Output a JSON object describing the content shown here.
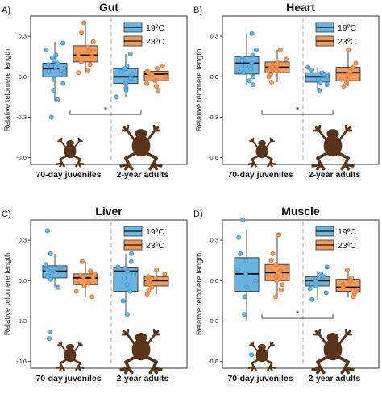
{
  "figure": {
    "ylabel": "Relative telomere length",
    "yticks": [
      "0.3",
      "0.0",
      "-0.3",
      "-0.6"
    ],
    "groups": [
      "70-day juveniles",
      "2-year adults"
    ],
    "legend": [
      "19ºC",
      "23ºC"
    ],
    "colors": {
      "c19": "#6ab4e2",
      "c19_dark": "#3f8fc4",
      "c23": "#f29a5b",
      "c23_dark": "#d57330",
      "frog": "#5a3419"
    },
    "significance_mark": "*"
  },
  "chart_data": [
    {
      "type": "box",
      "letter": "A)",
      "title": "Gut",
      "ylabel": "Relative telomere length",
      "ylim": [
        -0.65,
        0.45
      ],
      "yticks": [
        0.3,
        0.0,
        -0.3,
        -0.6
      ],
      "categories": [
        "70-day juveniles",
        "2-year adults"
      ],
      "significance": {
        "mark": "*",
        "between": [
          "70-day juveniles",
          "2-year adults"
        ]
      },
      "series": [
        {
          "name": "19ºC",
          "boxes": [
            {
              "group": "70-day juveniles",
              "min": -0.18,
              "q1": 0.0,
              "median": 0.06,
              "q3": 0.1,
              "max": 0.26,
              "points": [
                0.25,
                0.2,
                0.16,
                0.14,
                0.12,
                0.1,
                0.09,
                0.08,
                0.07,
                0.06,
                0.05,
                0.04,
                0.03,
                0.02,
                -0.02,
                -0.05,
                -0.1,
                -0.17,
                -0.3
              ]
            },
            {
              "group": "2-year adults",
              "min": -0.15,
              "q1": -0.05,
              "median": 0.0,
              "q3": 0.06,
              "max": 0.17,
              "points": [
                0.17,
                0.08,
                0.06,
                0.04,
                0.02,
                -0.01,
                -0.05,
                -0.08,
                -0.1,
                -0.15
              ]
            }
          ]
        },
        {
          "name": "23ºC",
          "boxes": [
            {
              "group": "70-day juveniles",
              "min": 0.03,
              "q1": 0.11,
              "median": 0.16,
              "q3": 0.23,
              "max": 0.4,
              "points": [
                0.4,
                0.33,
                0.26,
                0.22,
                0.2,
                0.19,
                0.17,
                0.15,
                0.13,
                0.11,
                0.09,
                0.05,
                0.03
              ]
            },
            {
              "group": "2-year adults",
              "min": -0.11,
              "q1": -0.03,
              "median": 0.02,
              "q3": 0.04,
              "max": 0.08,
              "points": [
                0.08,
                0.06,
                0.04,
                0.03,
                0.02,
                0.0,
                -0.03,
                -0.05,
                -0.07,
                -0.1
              ]
            }
          ]
        }
      ]
    },
    {
      "type": "box",
      "letter": "B)",
      "title": "Heart",
      "ylabel": "Relative telomere length",
      "ylim": [
        -0.65,
        0.45
      ],
      "yticks": [
        0.3,
        0.0,
        -0.3,
        -0.6
      ],
      "categories": [
        "70-day juveniles",
        "2-year adults"
      ],
      "significance": {
        "mark": "*",
        "between": [
          "70-day juveniles",
          "2-year adults"
        ]
      },
      "series": [
        {
          "name": "19ºC",
          "boxes": [
            {
              "group": "70-day juveniles",
              "min": -0.06,
              "q1": 0.02,
              "median": 0.1,
              "q3": 0.15,
              "max": 0.32,
              "points": [
                0.32,
                0.2,
                0.16,
                0.14,
                0.12,
                0.1,
                0.08,
                0.06,
                0.05,
                0.03,
                0.0,
                -0.03,
                -0.06
              ]
            },
            {
              "group": "2-year adults",
              "min": -0.1,
              "q1": -0.04,
              "median": 0.0,
              "q3": 0.03,
              "max": 0.07,
              "points": [
                0.07,
                0.05,
                0.03,
                0.02,
                0.0,
                -0.02,
                -0.04,
                -0.06,
                -0.1
              ]
            }
          ]
        },
        {
          "name": "23ºC",
          "boxes": [
            {
              "group": "70-day juveniles",
              "min": -0.04,
              "q1": 0.03,
              "median": 0.07,
              "q3": 0.11,
              "max": 0.2,
              "points": [
                0.2,
                0.13,
                0.11,
                0.09,
                0.08,
                0.07,
                0.06,
                0.05,
                0.04,
                0.02,
                0.0,
                -0.04
              ]
            },
            {
              "group": "2-year adults",
              "min": -0.07,
              "q1": -0.03,
              "median": 0.03,
              "q3": 0.07,
              "max": 0.2,
              "points": [
                0.2,
                0.1,
                0.07,
                0.04,
                0.02,
                0.0,
                -0.02,
                -0.04,
                -0.07
              ]
            }
          ]
        }
      ]
    },
    {
      "type": "box",
      "letter": "C)",
      "title": "Liver",
      "ylabel": "Relative telomere length",
      "ylim": [
        -0.65,
        0.45
      ],
      "yticks": [
        0.3,
        0.0,
        -0.3,
        -0.6
      ],
      "categories": [
        "70-day juveniles",
        "2-year adults"
      ],
      "significance": null,
      "series": [
        {
          "name": "19ºC",
          "boxes": [
            {
              "group": "70-day juveniles",
              "min": -0.05,
              "q1": 0.02,
              "median": 0.07,
              "q3": 0.11,
              "max": 0.2,
              "points": [
                0.37,
                0.2,
                0.12,
                0.1,
                0.09,
                0.08,
                0.07,
                0.06,
                0.05,
                0.03,
                0.01,
                -0.05,
                -0.38,
                -0.43
              ]
            },
            {
              "group": "2-year adults",
              "min": -0.25,
              "q1": -0.08,
              "median": 0.07,
              "q3": 0.1,
              "max": 0.2,
              "points": [
                0.2,
                0.14,
                0.1,
                0.09,
                0.07,
                0.05,
                0.02,
                -0.03,
                -0.08,
                -0.15,
                -0.25
              ]
            }
          ]
        },
        {
          "name": "23ºC",
          "boxes": [
            {
              "group": "70-day juveniles",
              "min": -0.12,
              "q1": -0.03,
              "median": 0.02,
              "q3": 0.05,
              "max": 0.14,
              "points": [
                0.14,
                0.07,
                0.05,
                0.04,
                0.03,
                0.02,
                0.0,
                -0.02,
                -0.04,
                -0.08,
                -0.12
              ]
            },
            {
              "group": "2-year adults",
              "min": -0.1,
              "q1": -0.04,
              "median": 0.0,
              "q3": 0.03,
              "max": 0.08,
              "points": [
                0.08,
                0.05,
                0.03,
                0.02,
                0.0,
                -0.01,
                -0.03,
                -0.05,
                -0.07,
                -0.1
              ]
            }
          ]
        }
      ]
    },
    {
      "type": "box",
      "letter": "D)",
      "title": "Muscle",
      "ylabel": "Relative telomere length",
      "ylim": [
        -0.65,
        0.45
      ],
      "yticks": [
        0.3,
        0.0,
        -0.3,
        -0.6
      ],
      "categories": [
        "70-day juveniles",
        "2-year adults"
      ],
      "significance": {
        "mark": "*",
        "between": [
          "70-day juveniles",
          "2-year adults"
        ]
      },
      "series": [
        {
          "name": "19ºC",
          "boxes": [
            {
              "group": "70-day juveniles",
              "min": -0.3,
              "q1": -0.08,
              "median": 0.05,
              "q3": 0.17,
              "max": 0.38,
              "points": [
                0.45,
                0.32,
                0.2,
                0.15,
                0.08,
                0.05,
                0.0,
                -0.05,
                -0.12,
                -0.25,
                -0.55
              ]
            },
            {
              "group": "2-year adults",
              "min": -0.14,
              "q1": -0.04,
              "median": 0.0,
              "q3": 0.03,
              "max": 0.07,
              "points": [
                0.1,
                0.05,
                0.03,
                0.02,
                0.0,
                -0.02,
                -0.04,
                -0.06,
                -0.09,
                -0.14
              ]
            }
          ]
        },
        {
          "name": "23ºC",
          "boxes": [
            {
              "group": "70-day juveniles",
              "min": -0.12,
              "q1": 0.0,
              "median": 0.06,
              "q3": 0.12,
              "max": 0.34,
              "points": [
                0.34,
                0.2,
                0.15,
                0.12,
                0.1,
                0.07,
                0.05,
                0.03,
                0.0,
                -0.03,
                -0.07,
                -0.12
              ]
            },
            {
              "group": "2-year adults",
              "min": -0.12,
              "q1": -0.08,
              "median": -0.05,
              "q3": 0.01,
              "max": 0.08,
              "points": [
                0.08,
                0.02,
                0.0,
                -0.03,
                -0.05,
                -0.07,
                -0.08,
                -0.1,
                -0.12
              ]
            }
          ]
        }
      ]
    }
  ]
}
